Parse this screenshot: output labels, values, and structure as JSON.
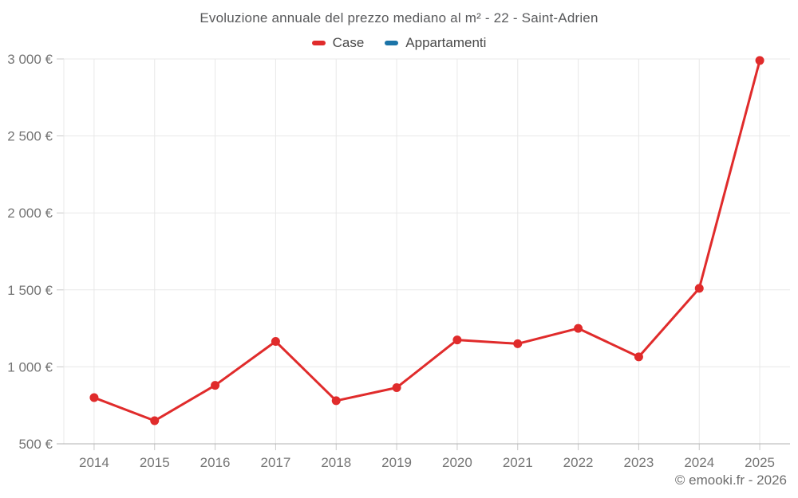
{
  "title": "Evoluzione annuale del prezzo mediano al m² - 22 - Saint-Adrien",
  "footer": "© emooki.fr - 2026",
  "legend": [
    {
      "label": "Case",
      "color": "#e02b2b"
    },
    {
      "label": "Appartamenti",
      "color": "#1b74a8"
    }
  ],
  "colors": {
    "grid": "#e8e8e8",
    "axis": "#b0b0b0",
    "tick": "#c9c9c9",
    "axis_label": "#757575"
  },
  "chart_data": {
    "type": "line",
    "title": "Evoluzione annuale del prezzo mediano al m² - 22 - Saint-Adrien",
    "categories": [
      "2014",
      "2015",
      "2016",
      "2017",
      "2018",
      "2019",
      "2020",
      "2021",
      "2022",
      "2023",
      "2024",
      "2025"
    ],
    "series": [
      {
        "name": "Case",
        "color": "#e02b2b",
        "values": [
          800,
          650,
          880,
          1165,
          780,
          865,
          1175,
          1150,
          1250,
          1065,
          1510,
          2990
        ]
      },
      {
        "name": "Appartamenti",
        "color": "#1b74a8",
        "values": []
      }
    ],
    "xlabel": "",
    "ylabel": "",
    "ylim": [
      500,
      3000
    ],
    "yticks": [
      500,
      1000,
      1500,
      2000,
      2500,
      3000
    ],
    "ytick_labels": [
      "500 €",
      "1 000 €",
      "1 500 €",
      "2 000 €",
      "2 500 €",
      "3 000 €"
    ],
    "grid": true,
    "legend_position": "top"
  }
}
